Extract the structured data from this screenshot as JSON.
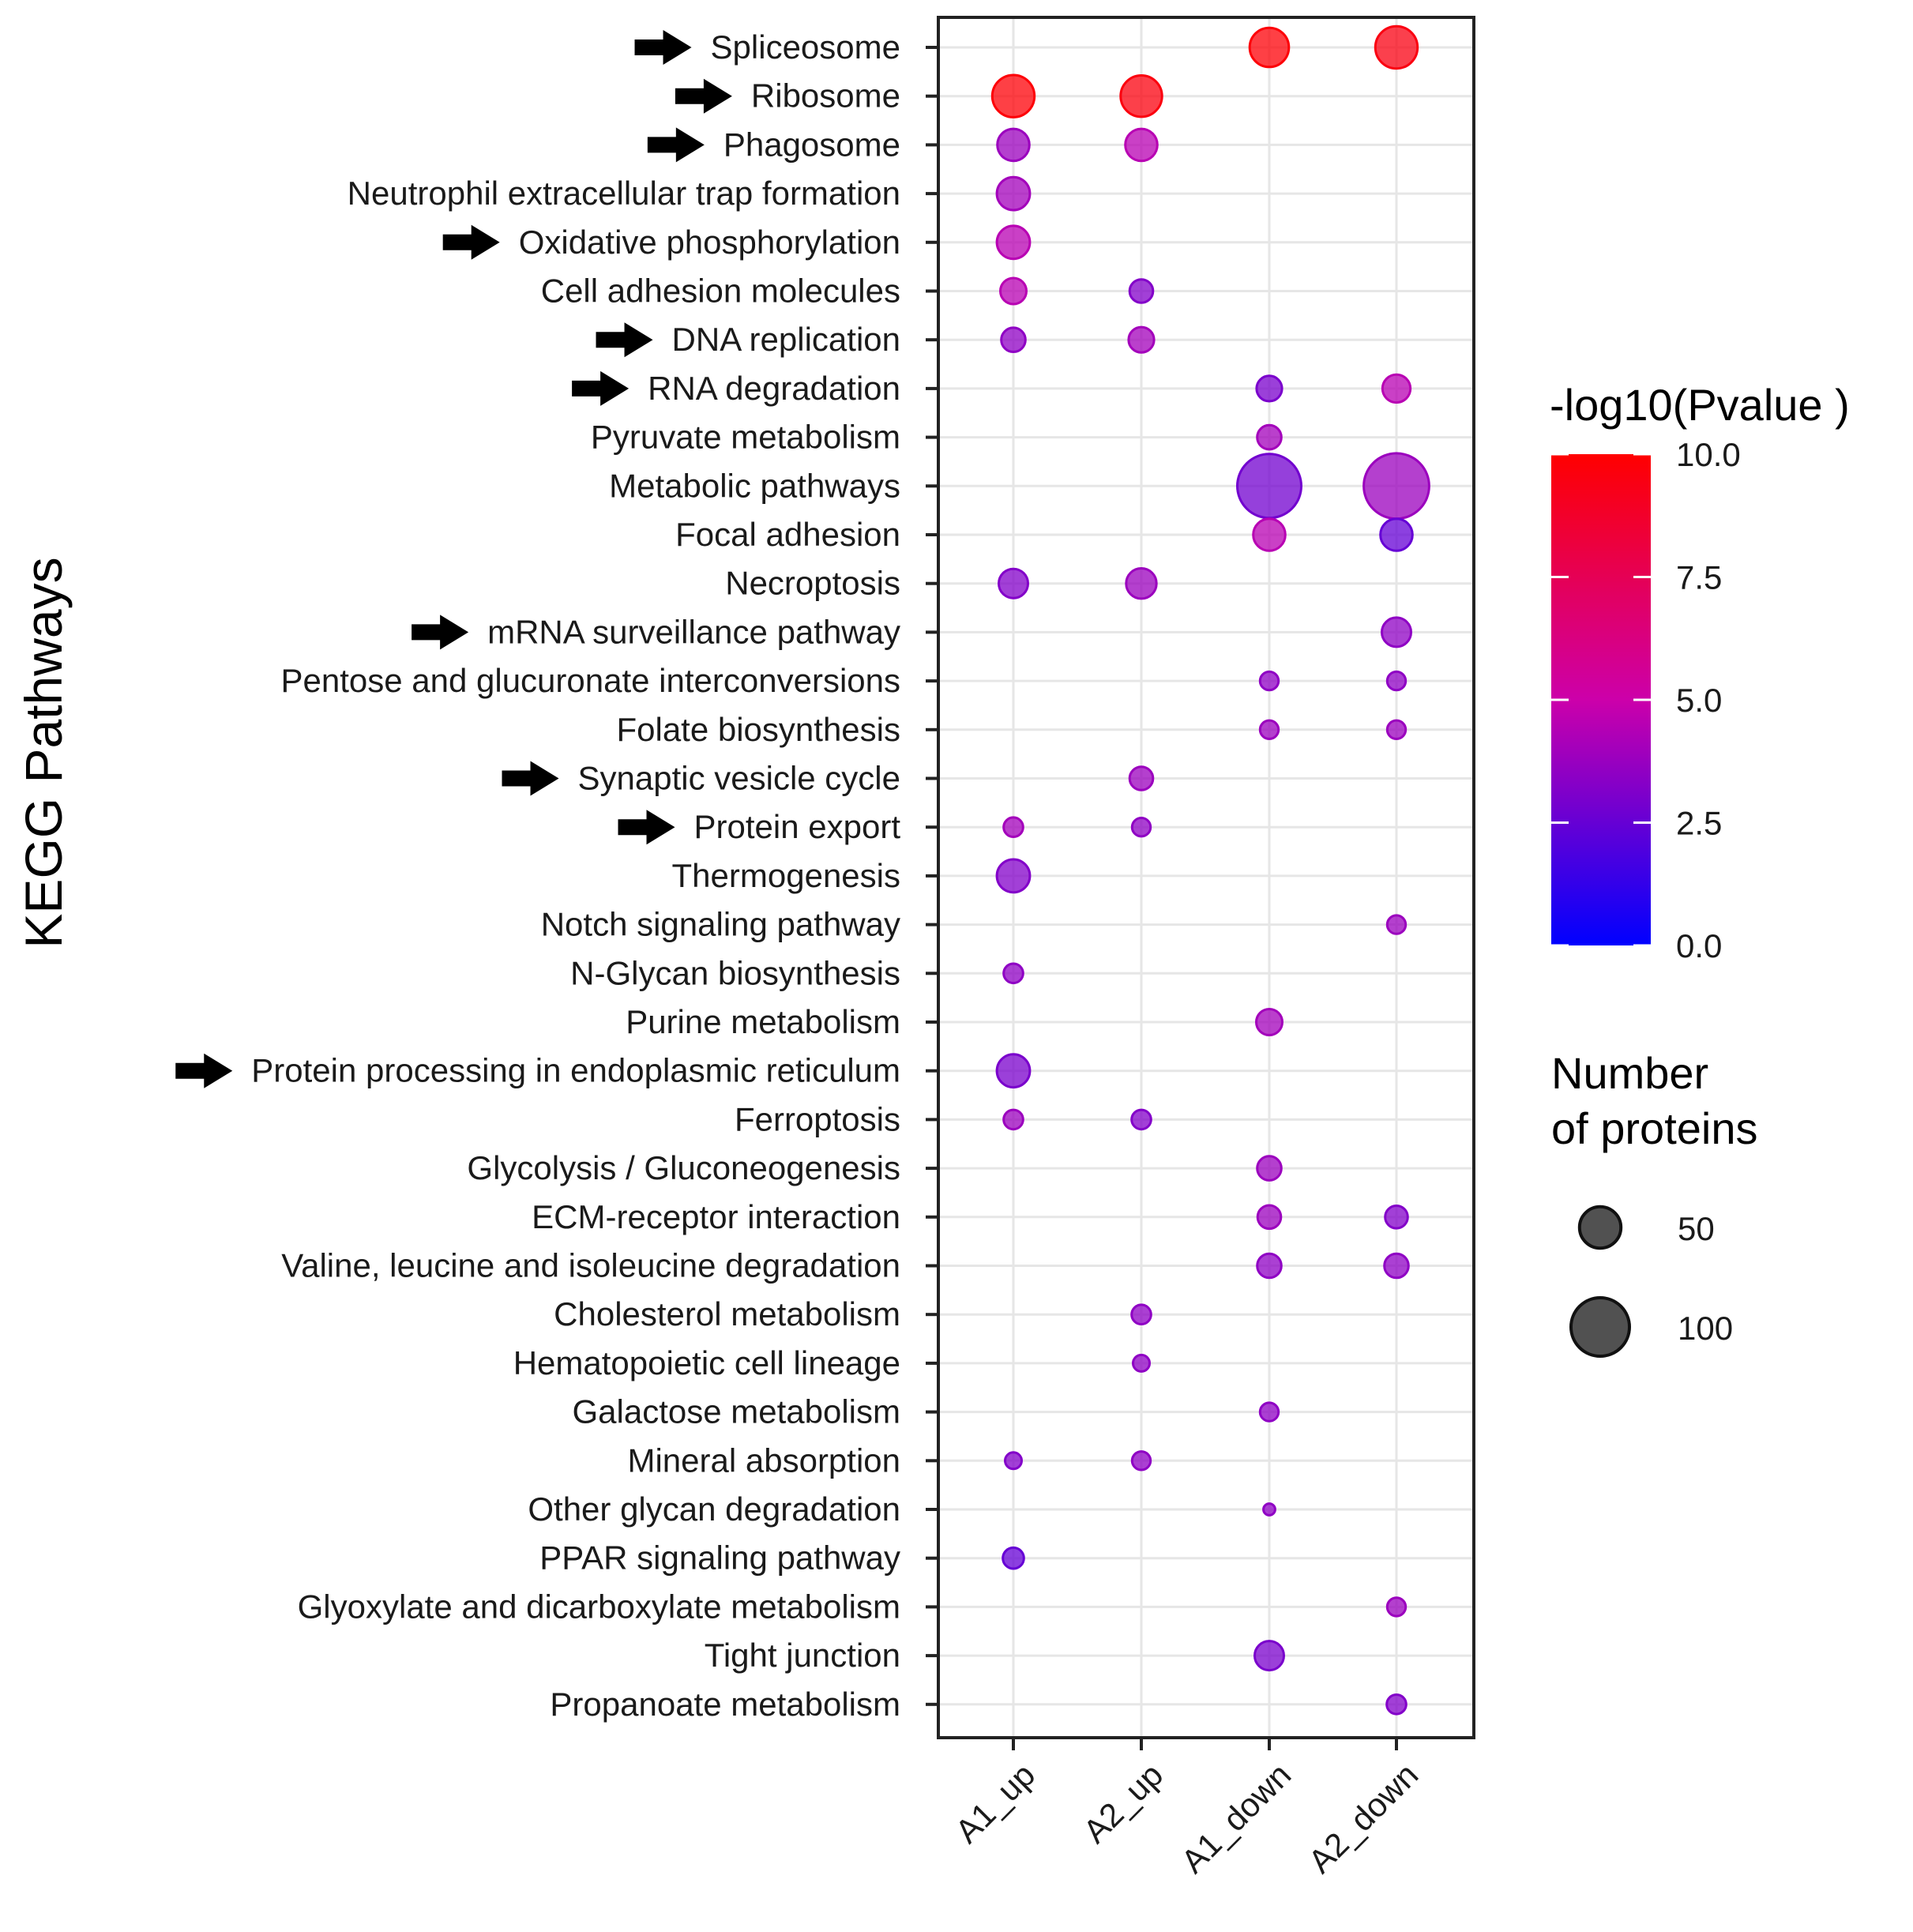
{
  "chart_data": {
    "type": "scatter",
    "subtype": "bubble",
    "ylabel": "KEGG Pathways",
    "categories_x": [
      "A1_up",
      "A2_up",
      "A1_down",
      "A2_down"
    ],
    "pathways": [
      {
        "name": "Spliceosome",
        "arrow": true
      },
      {
        "name": "Ribosome",
        "arrow": true
      },
      {
        "name": "Phagosome",
        "arrow": true
      },
      {
        "name": "Neutrophil extracellular trap formation",
        "arrow": false
      },
      {
        "name": "Oxidative phosphorylation",
        "arrow": true
      },
      {
        "name": "Cell adhesion molecules",
        "arrow": false
      },
      {
        "name": "DNA replication",
        "arrow": true
      },
      {
        "name": "RNA degradation",
        "arrow": true
      },
      {
        "name": "Pyruvate metabolism",
        "arrow": false
      },
      {
        "name": "Metabolic pathways",
        "arrow": false
      },
      {
        "name": "Focal adhesion",
        "arrow": false
      },
      {
        "name": "Necroptosis",
        "arrow": false
      },
      {
        "name": "mRNA surveillance pathway",
        "arrow": true
      },
      {
        "name": "Pentose and glucuronate interconversions",
        "arrow": false
      },
      {
        "name": "Folate biosynthesis",
        "arrow": false
      },
      {
        "name": "Synaptic vesicle cycle",
        "arrow": true
      },
      {
        "name": "Protein export",
        "arrow": true
      },
      {
        "name": "Thermogenesis",
        "arrow": false
      },
      {
        "name": "Notch signaling pathway",
        "arrow": false
      },
      {
        "name": "N-Glycan biosynthesis",
        "arrow": false
      },
      {
        "name": "Purine metabolism",
        "arrow": false
      },
      {
        "name": "Protein processing in endoplasmic reticulum",
        "arrow": true
      },
      {
        "name": "Ferroptosis",
        "arrow": false
      },
      {
        "name": "Glycolysis   / Gluconeogenesis",
        "arrow": false
      },
      {
        "name": "ECM-receptor interaction",
        "arrow": false
      },
      {
        "name": "Valine, leucine and isoleucine degradation",
        "arrow": false
      },
      {
        "name": "Cholesterol metabolism",
        "arrow": false
      },
      {
        "name": "Hematopoietic cell lineage",
        "arrow": false
      },
      {
        "name": "Galactose metabolism",
        "arrow": false
      },
      {
        "name": "Mineral absorption",
        "arrow": false
      },
      {
        "name": "Other glycan degradation",
        "arrow": false
      },
      {
        "name": "PPAR signaling pathway",
        "arrow": false
      },
      {
        "name": "Glyoxylate and dicarboxylate metabolism",
        "arrow": false
      },
      {
        "name": "Tight junction",
        "arrow": false
      },
      {
        "name": "Propanoate metabolism",
        "arrow": false
      }
    ],
    "points": [
      {
        "pathway": "Spliceosome",
        "group": "A1_down",
        "neg_log10_p": 9.8,
        "count": 45
      },
      {
        "pathway": "Spliceosome",
        "group": "A2_down",
        "neg_log10_p": 9.5,
        "count": 52
      },
      {
        "pathway": "Ribosome",
        "group": "A1_up",
        "neg_log10_p": 9.8,
        "count": 52
      },
      {
        "pathway": "Ribosome",
        "group": "A2_up",
        "neg_log10_p": 9.6,
        "count": 50
      },
      {
        "pathway": "Phagosome",
        "group": "A1_up",
        "neg_log10_p": 3.8,
        "count": 30
      },
      {
        "pathway": "Phagosome",
        "group": "A2_up",
        "neg_log10_p": 4.5,
        "count": 30
      },
      {
        "pathway": "Neutrophil extracellular trap formation",
        "group": "A1_up",
        "neg_log10_p": 4.0,
        "count": 32
      },
      {
        "pathway": "Oxidative phosphorylation",
        "group": "A1_up",
        "neg_log10_p": 4.5,
        "count": 32
      },
      {
        "pathway": "Cell adhesion molecules",
        "group": "A1_up",
        "neg_log10_p": 4.5,
        "count": 20
      },
      {
        "pathway": "Cell adhesion molecules",
        "group": "A2_up",
        "neg_log10_p": 3.2,
        "count": 16
      },
      {
        "pathway": "DNA replication",
        "group": "A1_up",
        "neg_log10_p": 3.5,
        "count": 17
      },
      {
        "pathway": "DNA replication",
        "group": "A2_up",
        "neg_log10_p": 4.0,
        "count": 19
      },
      {
        "pathway": "RNA degradation",
        "group": "A1_down",
        "neg_log10_p": 3.0,
        "count": 19
      },
      {
        "pathway": "RNA degradation",
        "group": "A2_down",
        "neg_log10_p": 4.5,
        "count": 23
      },
      {
        "pathway": "Pyruvate metabolism",
        "group": "A1_down",
        "neg_log10_p": 4.0,
        "count": 17
      },
      {
        "pathway": "Metabolic pathways",
        "group": "A1_down",
        "neg_log10_p": 2.8,
        "count": 120
      },
      {
        "pathway": "Metabolic pathways",
        "group": "A2_down",
        "neg_log10_p": 3.8,
        "count": 125
      },
      {
        "pathway": "Focal adhesion",
        "group": "A1_down",
        "neg_log10_p": 4.5,
        "count": 30
      },
      {
        "pathway": "Focal adhesion",
        "group": "A2_down",
        "neg_log10_p": 2.5,
        "count": 30
      },
      {
        "pathway": "Necroptosis",
        "group": "A1_up",
        "neg_log10_p": 3.2,
        "count": 25
      },
      {
        "pathway": "Necroptosis",
        "group": "A2_up",
        "neg_log10_p": 3.8,
        "count": 27
      },
      {
        "pathway": "mRNA surveillance pathway",
        "group": "A2_down",
        "neg_log10_p": 3.5,
        "count": 25
      },
      {
        "pathway": "Pentose and glucuronate interconversions",
        "group": "A1_down",
        "neg_log10_p": 3.5,
        "count": 10
      },
      {
        "pathway": "Pentose and glucuronate interconversions",
        "group": "A2_down",
        "neg_log10_p": 3.5,
        "count": 10
      },
      {
        "pathway": "Folate biosynthesis",
        "group": "A1_down",
        "neg_log10_p": 3.8,
        "count": 10
      },
      {
        "pathway": "Folate biosynthesis",
        "group": "A2_down",
        "neg_log10_p": 3.8,
        "count": 10
      },
      {
        "pathway": "Synaptic vesicle cycle",
        "group": "A2_up",
        "neg_log10_p": 3.8,
        "count": 16
      },
      {
        "pathway": "Protein export",
        "group": "A1_up",
        "neg_log10_p": 4.0,
        "count": 11
      },
      {
        "pathway": "Protein export",
        "group": "A2_up",
        "neg_log10_p": 3.5,
        "count": 10
      },
      {
        "pathway": "Thermogenesis",
        "group": "A1_up",
        "neg_log10_p": 3.2,
        "count": 32
      },
      {
        "pathway": "Notch signaling pathway",
        "group": "A2_down",
        "neg_log10_p": 3.8,
        "count": 10
      },
      {
        "pathway": "N-Glycan biosynthesis",
        "group": "A1_up",
        "neg_log10_p": 3.5,
        "count": 11
      },
      {
        "pathway": "Purine metabolism",
        "group": "A1_down",
        "neg_log10_p": 4.0,
        "count": 20
      },
      {
        "pathway": "Protein processing in endoplasmic reticulum",
        "group": "A1_up",
        "neg_log10_p": 3.0,
        "count": 32
      },
      {
        "pathway": "Ferroptosis",
        "group": "A1_up",
        "neg_log10_p": 3.8,
        "count": 11
      },
      {
        "pathway": "Ferroptosis",
        "group": "A2_up",
        "neg_log10_p": 3.2,
        "count": 11
      },
      {
        "pathway": "Glycolysis   / Gluconeogenesis",
        "group": "A1_down",
        "neg_log10_p": 3.8,
        "count": 17
      },
      {
        "pathway": "ECM-receptor interaction",
        "group": "A1_down",
        "neg_log10_p": 3.8,
        "count": 16
      },
      {
        "pathway": "ECM-receptor interaction",
        "group": "A2_down",
        "neg_log10_p": 3.2,
        "count": 15
      },
      {
        "pathway": "Valine, leucine and isoleucine degradation",
        "group": "A1_down",
        "neg_log10_p": 3.5,
        "count": 17
      },
      {
        "pathway": "Valine, leucine and isoleucine degradation",
        "group": "A2_down",
        "neg_log10_p": 3.5,
        "count": 17
      },
      {
        "pathway": "Cholesterol metabolism",
        "group": "A2_up",
        "neg_log10_p": 3.5,
        "count": 11
      },
      {
        "pathway": "Hematopoietic cell lineage",
        "group": "A2_up",
        "neg_log10_p": 3.5,
        "count": 8
      },
      {
        "pathway": "Galactose metabolism",
        "group": "A1_down",
        "neg_log10_p": 3.5,
        "count": 10
      },
      {
        "pathway": "Mineral absorption",
        "group": "A1_up",
        "neg_log10_p": 3.2,
        "count": 8
      },
      {
        "pathway": "Mineral absorption",
        "group": "A2_up",
        "neg_log10_p": 3.5,
        "count": 10
      },
      {
        "pathway": "Other glycan degradation",
        "group": "A1_down",
        "neg_log10_p": 3.5,
        "count": 4
      },
      {
        "pathway": "PPAR signaling pathway",
        "group": "A1_up",
        "neg_log10_p": 2.5,
        "count": 13
      },
      {
        "pathway": "Glyoxylate and dicarboxylate metabolism",
        "group": "A2_down",
        "neg_log10_p": 3.8,
        "count": 10
      },
      {
        "pathway": "Tight junction",
        "group": "A1_down",
        "neg_log10_p": 3.0,
        "count": 25
      },
      {
        "pathway": "Propanoate metabolism",
        "group": "A2_down",
        "neg_log10_p": 3.2,
        "count": 11
      }
    ],
    "color_legend": {
      "title": "-log10(Pvalue )",
      "min": 0,
      "max": 10,
      "ticks": [
        "0.0",
        "2.5",
        "5.0",
        "7.5",
        "10.0"
      ],
      "low_color": "#0000ff",
      "mid_color": "#cc00aa",
      "high_color": "#ff0000"
    },
    "size_legend": {
      "title_line1": "Number",
      "title_line2": "of proteins",
      "entries": [
        50,
        100
      ]
    }
  }
}
